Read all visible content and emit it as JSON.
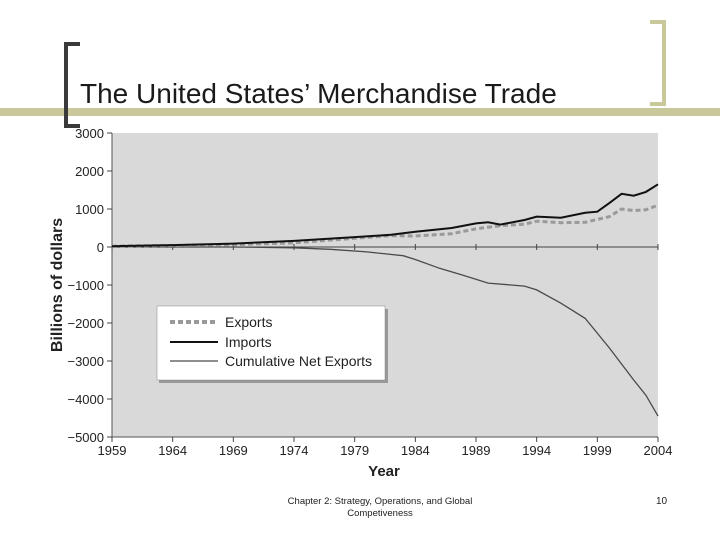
{
  "slide": {
    "title": "The United States’ Merchandise Trade",
    "footer": "Chapter 2: Strategy, Operations, and Global Competiveness",
    "page_number": "10"
  },
  "colors": {
    "bracket": "#c8c89a",
    "bracket_dark": "#3a3a3a",
    "plot_bg": "#d9d9d9",
    "exports": "#9a9a9a",
    "imports": "#111111",
    "net": "#4a4a4a"
  },
  "chart_data": {
    "type": "line",
    "title": "",
    "xlabel": "Year",
    "ylabel": "Billions of dollars",
    "xlim": [
      1959,
      2004
    ],
    "ylim": [
      -5000,
      3000
    ],
    "x_ticks": [
      1959,
      1964,
      1969,
      1974,
      1979,
      1984,
      1989,
      1994,
      1999,
      2004
    ],
    "y_ticks": [
      -5000,
      -4000,
      -3000,
      -2000,
      -1000,
      0,
      1000,
      2000,
      3000
    ],
    "x_tick_labels": [
      "1959",
      "1964",
      "1969",
      "1974",
      "1979",
      "1984",
      "1989",
      "1994",
      "1999",
      "2004"
    ],
    "y_tick_labels": [
      "−5000",
      "−4000",
      "−3000",
      "−2000",
      "−1000",
      "0",
      "1000",
      "2000",
      "3000"
    ],
    "grid": false,
    "legend_position": "lower-left",
    "series": [
      {
        "name": "Exports",
        "style": "dashed",
        "x": [
          1959,
          1964,
          1969,
          1974,
          1979,
          1982,
          1984,
          1987,
          1989,
          1991,
          1993,
          1994,
          1996,
          1998,
          2000,
          2001,
          2002,
          2003,
          2004
        ],
        "y": [
          20,
          40,
          60,
          110,
          230,
          300,
          290,
          350,
          480,
          560,
          600,
          680,
          640,
          650,
          800,
          1000,
          960,
          980,
          1100
        ]
      },
      {
        "name": "Imports",
        "style": "solid",
        "x": [
          1959,
          1964,
          1969,
          1974,
          1979,
          1982,
          1984,
          1987,
          1989,
          1990,
          1991,
          1993,
          1994,
          1996,
          1998,
          1999,
          2000,
          2001,
          2002,
          2003,
          2004
        ],
        "y": [
          20,
          50,
          90,
          160,
          260,
          320,
          400,
          500,
          620,
          650,
          590,
          710,
          800,
          770,
          900,
          930,
          1160,
          1400,
          1350,
          1450,
          1650
        ]
      },
      {
        "name": "Cumulative Net Exports",
        "style": "solid-thin",
        "x": [
          1959,
          1969,
          1974,
          1977,
          1980,
          1983,
          1984,
          1986,
          1988,
          1990,
          1993,
          1994,
          1996,
          1998,
          2000,
          2002,
          2003,
          2004
        ],
        "y": [
          0,
          0,
          -20,
          -60,
          -130,
          -230,
          -330,
          -560,
          -750,
          -950,
          -1030,
          -1130,
          -1480,
          -1880,
          -2660,
          -3500,
          -3900,
          -4450
        ]
      }
    ]
  }
}
